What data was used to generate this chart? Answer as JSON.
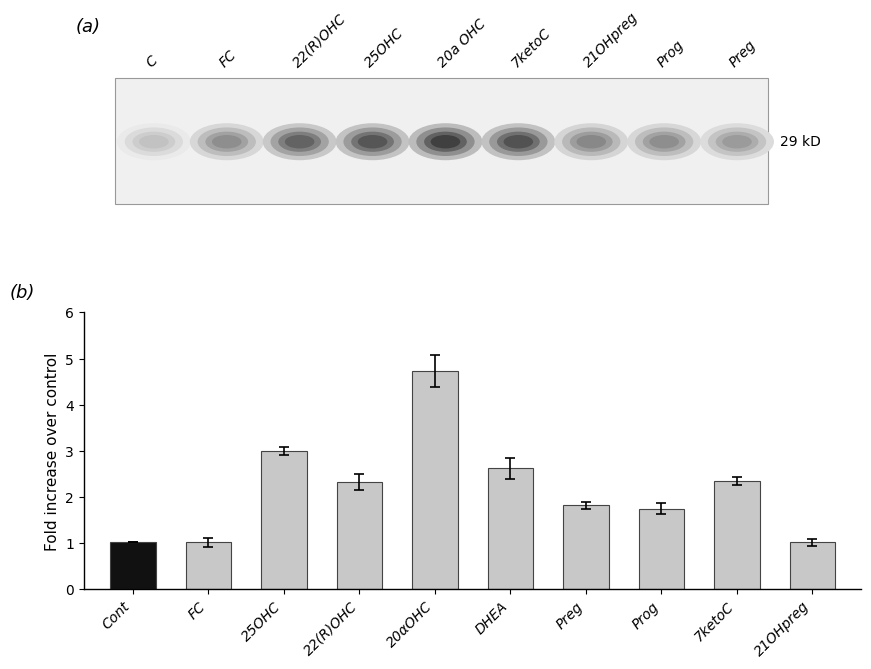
{
  "panel_a_label": "(a)",
  "panel_b_label": "(b)",
  "blot_labels": [
    "C",
    "FC",
    "22(R)OHC",
    "25OHC",
    "20a OHC",
    "7ketoC",
    "21OHpreg",
    "Prog",
    "Preg"
  ],
  "kd_label": "29 kD",
  "bar_categories": [
    "Cont",
    "FC",
    "25OHC",
    "22(R)OHC",
    "20αOHC",
    "DHEA",
    "Preg",
    "Prog",
    "7ketoC",
    "21OHpreg"
  ],
  "bar_values": [
    1.03,
    1.02,
    3.0,
    2.33,
    4.73,
    2.62,
    1.82,
    1.75,
    2.35,
    1.02
  ],
  "bar_errors": [
    0.0,
    0.1,
    0.08,
    0.18,
    0.35,
    0.22,
    0.07,
    0.12,
    0.08,
    0.07
  ],
  "bar_colors": [
    "#111111",
    "#c8c8c8",
    "#c8c8c8",
    "#c8c8c8",
    "#c8c8c8",
    "#c8c8c8",
    "#c8c8c8",
    "#c8c8c8",
    "#c8c8c8",
    "#c8c8c8"
  ],
  "ylabel": "Fold increase over control",
  "ylim": [
    0,
    6
  ],
  "yticks": [
    0,
    1,
    2,
    3,
    4,
    5,
    6
  ],
  "blot_bg_color": "#f0f0f0",
  "band_intensities": [
    0.28,
    0.52,
    0.72,
    0.78,
    0.88,
    0.8,
    0.55,
    0.52,
    0.46
  ],
  "axis_fontsize": 11,
  "tick_fontsize": 10,
  "label_fontsize": 13
}
